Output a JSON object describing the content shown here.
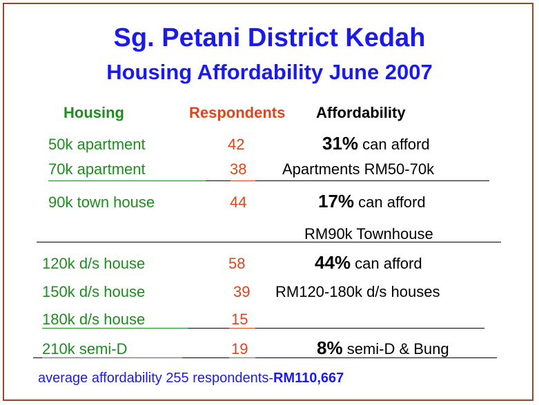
{
  "title": "Sg. Petani District Kedah",
  "subtitle": "Housing Affordability June 2007",
  "headers": {
    "housing": "Housing",
    "respondents": "Respondents",
    "affordability": "Affordability"
  },
  "rows": [
    {
      "housing": "50k apartment",
      "respondents": "42"
    },
    {
      "housing": "70k apartment",
      "respondents": "38"
    },
    {
      "housing": "90k town house",
      "respondents": "44"
    },
    {
      "housing": "120k d/s house",
      "respondents": "58"
    },
    {
      "housing": "150k d/s house",
      "respondents": "39"
    },
    {
      "housing": "180k d/s  house",
      "respondents": "15"
    },
    {
      "housing": "210k semi-D",
      "respondents": "19"
    }
  ],
  "affordability_notes": [
    {
      "percent": "31%",
      "text": " can afford"
    },
    {
      "text": "Apartments RM50-70k"
    },
    {
      "percent": "17%",
      "text": " can afford"
    },
    {
      "text": "RM90k Townhouse"
    },
    {
      "percent": "44%",
      "text": " can afford"
    },
    {
      "text": "RM120-180k d/s houses"
    },
    {
      "percent": "8%",
      "text": " semi-D & Bung"
    }
  ],
  "footer": {
    "prefix": "average affordability",
    "count": "255",
    "middle": "respondents-",
    "average": "RM110,667"
  },
  "colors": {
    "title": "#1a1aee",
    "housing": "#1e8c1e",
    "respondents": "#e0441a",
    "affordability": "#000000",
    "border": "#8b4a2b"
  }
}
